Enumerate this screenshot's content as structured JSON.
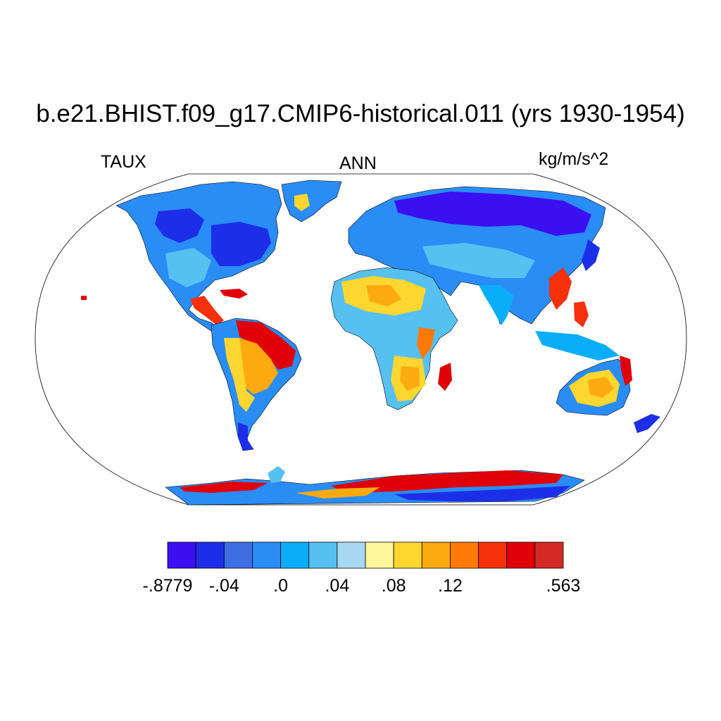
{
  "title": "b.e21.BHIST.f09_g17.CMIP6-historical.011 (yrs 1930-1954)",
  "variable": "TAUX",
  "season": "ANN",
  "units": "kg/m/s^2",
  "projection": "robinson",
  "colorbar": {
    "colors": [
      "#3a10f0",
      "#1d2ee8",
      "#3e6ee3",
      "#2a8cf5",
      "#0aaef8",
      "#56c0f0",
      "#aad8f0",
      "#fff59a",
      "#fed630",
      "#fda910",
      "#fd7a06",
      "#f7300c",
      "#e00008",
      "#d42a26"
    ],
    "labels": [
      {
        "boundary": 0,
        "text": "-.8779"
      },
      {
        "boundary": 2,
        "text": "-.04"
      },
      {
        "boundary": 4,
        "text": ".0"
      },
      {
        "boundary": 6,
        "text": ".04"
      },
      {
        "boundary": 8,
        "text": ".08"
      },
      {
        "boundary": 10,
        "text": ".12"
      },
      {
        "boundary": 14,
        "text": ".563"
      }
    ]
  }
}
